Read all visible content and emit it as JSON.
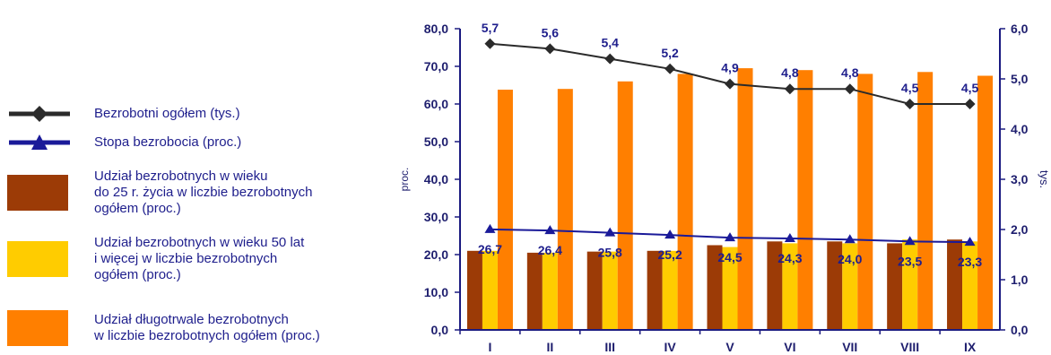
{
  "legend": [
    {
      "label": "Bezrobotni ogółem (tys.)",
      "kind": "line-diamond",
      "color": "#2b2b2b"
    },
    {
      "label": "Stopa bezrobocia (proc.)",
      "kind": "line-triangle",
      "color": "#1a1a99"
    },
    {
      "label": "Udział bezrobotnych w wieku|do 25 r. życia w liczbie bezrobotnych|ogółem (proc.)",
      "kind": "bar",
      "color": "#9c3b06"
    },
    {
      "label": "Udział bezrobotnych w wieku 50 lat|i więcej w liczbie bezrobotnych|ogółem (proc.)",
      "kind": "bar",
      "color": "#ffcc00"
    },
    {
      "label": "Udział długotrwale bezrobotnych|w liczbie bezrobotnych ogółem (proc.)",
      "kind": "bar",
      "color": "#ff7f00"
    }
  ],
  "chart_data": {
    "type": "bar",
    "categories": [
      "I",
      "II",
      "III",
      "IV",
      "V",
      "VI",
      "VII",
      "VIII",
      "IX"
    ],
    "ylabel": "proc.",
    "y2label": "tys.",
    "ylim": [
      0,
      80
    ],
    "y2lim": [
      0,
      6
    ],
    "yticks": [
      "0,0",
      "10,0",
      "20,0",
      "30,0",
      "40,0",
      "50,0",
      "60,0",
      "70,0",
      "80,0"
    ],
    "y2ticks": [
      "0,0",
      "1,0",
      "2,0",
      "3,0",
      "4,0",
      "5,0",
      "6,0"
    ],
    "series": [
      {
        "name": "Udział bezrobotnych w wieku do 25 r. życia w liczbie bezrobotnych ogółem (proc.)",
        "kind": "bar",
        "color": "#9c3b06",
        "values": [
          21.0,
          20.5,
          20.8,
          21.0,
          22.5,
          23.5,
          23.5,
          23.0,
          24.0
        ]
      },
      {
        "name": "Udział bezrobotnych w wieku 50 lat i więcej w liczbie bezrobotnych ogółem (proc.)",
        "kind": "bar",
        "color": "#ffcc00",
        "values": [
          21.0,
          20.5,
          20.8,
          21.0,
          22.0,
          23.0,
          23.0,
          24.0,
          23.5
        ]
      },
      {
        "name": "Udział długotrwale bezrobotnych w liczbie bezrobotnych ogółem (proc.)",
        "kind": "bar",
        "color": "#ff7f00",
        "values": [
          63.8,
          64.0,
          66.0,
          68.0,
          69.5,
          69.0,
          68.0,
          68.5,
          67.5
        ]
      },
      {
        "name": "Stopa bezrobocia (proc.)",
        "kind": "line",
        "axis": "left",
        "color": "#1a1a99",
        "marker": "triangle",
        "values": [
          26.7,
          26.4,
          25.8,
          25.2,
          24.5,
          24.3,
          24.0,
          23.5,
          23.3
        ],
        "labels": [
          "26,7",
          "26,4",
          "25,8",
          "25,2",
          "24,5",
          "24,3",
          "24,0",
          "23,5",
          "23,3"
        ]
      },
      {
        "name": "Bezrobotni ogółem (tys.)",
        "kind": "line",
        "axis": "right",
        "color": "#2b2b2b",
        "marker": "diamond",
        "values": [
          5.7,
          5.6,
          5.4,
          5.2,
          4.9,
          4.8,
          4.8,
          4.5,
          4.5
        ],
        "labels": [
          "5,7",
          "5,6",
          "5,4",
          "5,2",
          "4,9",
          "4,8",
          "4,8",
          "4,5",
          "4,5"
        ]
      }
    ]
  }
}
